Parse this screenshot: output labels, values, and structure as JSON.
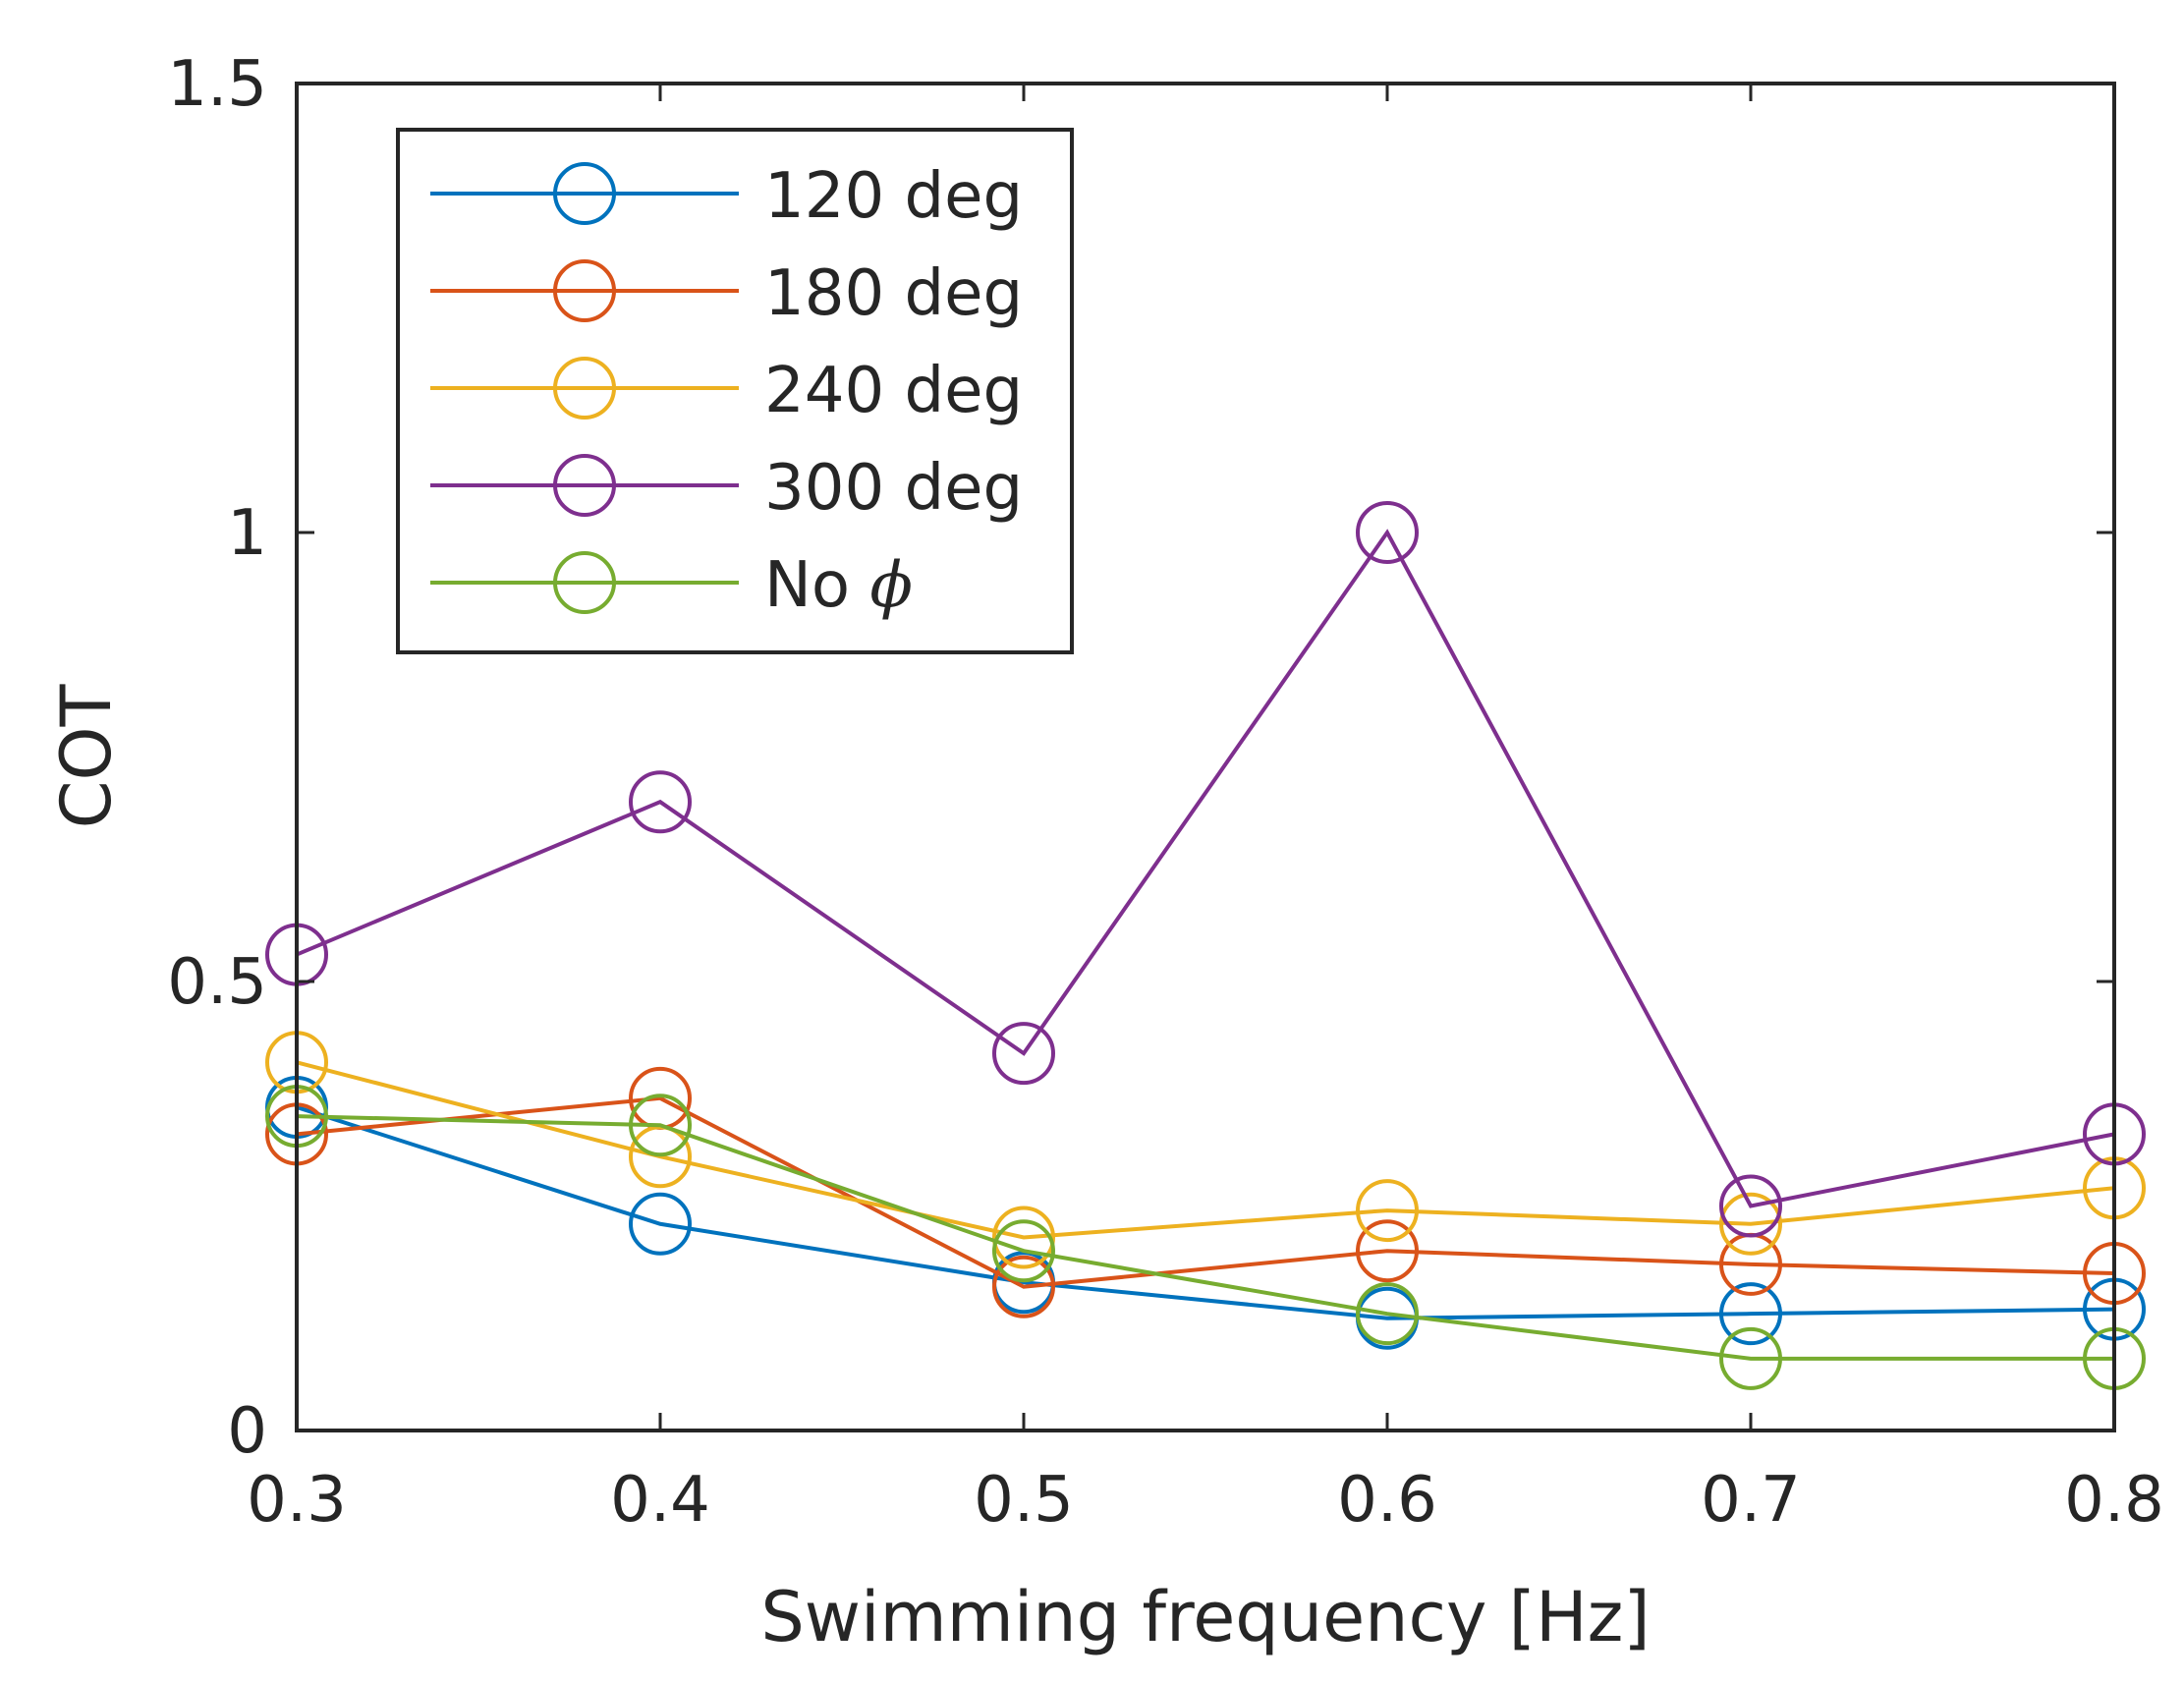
{
  "chart_data": {
    "type": "line",
    "title": "",
    "xlabel": "Swimming frequency [Hz]",
    "ylabel": "COT",
    "xlim": [
      0.3,
      0.8
    ],
    "ylim": [
      0,
      1.5
    ],
    "x": [
      0.3,
      0.4,
      0.5,
      0.6,
      0.7,
      0.8
    ],
    "x_tick_labels": [
      "0.3",
      "0.4",
      "0.5",
      "0.6",
      "0.7",
      "0.8"
    ],
    "y_ticks": [
      0,
      0.5,
      1,
      1.5
    ],
    "y_tick_labels": [
      "0",
      "0.5",
      "1",
      "1.5"
    ],
    "grid": false,
    "legend_position": "top-left",
    "marker": "open-circle",
    "series": [
      {
        "name": "120 deg",
        "color": "#0072BD",
        "values": [
          0.36,
          0.23,
          0.165,
          0.125,
          0.13,
          0.135
        ]
      },
      {
        "name": "180 deg",
        "color": "#D95319",
        "values": [
          0.33,
          0.37,
          0.16,
          0.2,
          0.185,
          0.175
        ]
      },
      {
        "name": "240 deg",
        "color": "#EDB120",
        "values": [
          0.41,
          0.305,
          0.215,
          0.245,
          0.23,
          0.27
        ]
      },
      {
        "name": "300 deg",
        "color": "#7E2F8E",
        "values": [
          0.53,
          0.7,
          0.42,
          1.0,
          0.25,
          0.33
        ]
      },
      {
        "name": "No ",
        "name_symbol": "ϕ",
        "color": "#77AC30",
        "values": [
          0.35,
          0.34,
          0.2,
          0.13,
          0.08,
          0.08
        ]
      }
    ]
  }
}
